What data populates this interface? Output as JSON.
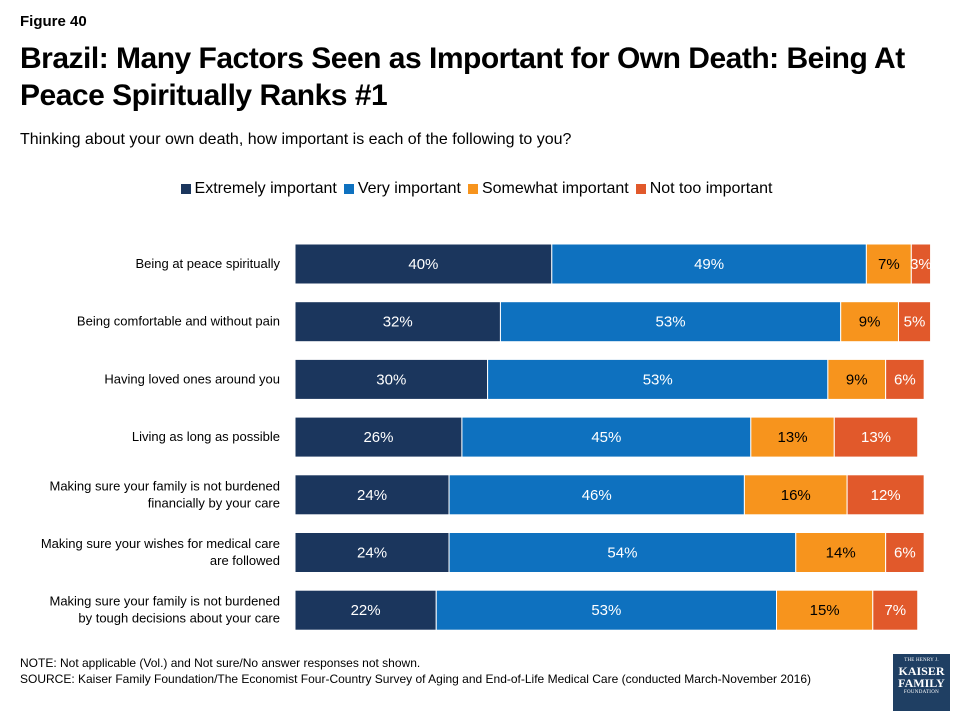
{
  "figure_label": "Figure 40",
  "title": "Brazil: Many Factors Seen as Important for Own Death: Being At Peace Spiritually Ranks #1",
  "subtitle": "Thinking about your own death, how important is each of the following to you?",
  "note": "NOTE: Not applicable (Vol.) and Not sure/No answer responses not shown.",
  "source": "SOURCE: Kaiser Family Foundation/The Economist Four-Country Survey of Aging and End-of-Life Medical Care (conducted March-November 2016)",
  "logo": {
    "line1": "THE HENRY J.",
    "line2": "KAISER",
    "line3": "FAMILY",
    "line4": "FOUNDATION"
  },
  "chart_data": {
    "type": "bar",
    "orientation": "horizontal",
    "stacked": true,
    "legend_position": "top",
    "value_suffix": "%",
    "categories": [
      [
        "Being at peace spiritually"
      ],
      [
        "Being comfortable and without pain"
      ],
      [
        "Having loved ones around you"
      ],
      [
        "Living as long as possible"
      ],
      [
        "Making sure your family is not burdened",
        "financially by your care"
      ],
      [
        "Making sure your wishes for medical care",
        "are followed"
      ],
      [
        "Making sure your family is not burdened",
        "by tough decisions about your care"
      ]
    ],
    "series": [
      {
        "name": "Extremely important",
        "color": "#1b365d",
        "values": [
          40,
          32,
          30,
          26,
          24,
          24,
          22
        ]
      },
      {
        "name": "Very important",
        "color": "#0e71bf",
        "values": [
          49,
          53,
          53,
          45,
          46,
          54,
          53
        ]
      },
      {
        "name": "Somewhat important",
        "color": "#f7941d",
        "values": [
          7,
          9,
          9,
          13,
          16,
          14,
          15
        ]
      },
      {
        "name": "Not too important",
        "color": "#e1592b",
        "values": [
          3,
          5,
          6,
          13,
          12,
          6,
          7
        ]
      }
    ],
    "xlim": [
      0,
      100
    ]
  }
}
